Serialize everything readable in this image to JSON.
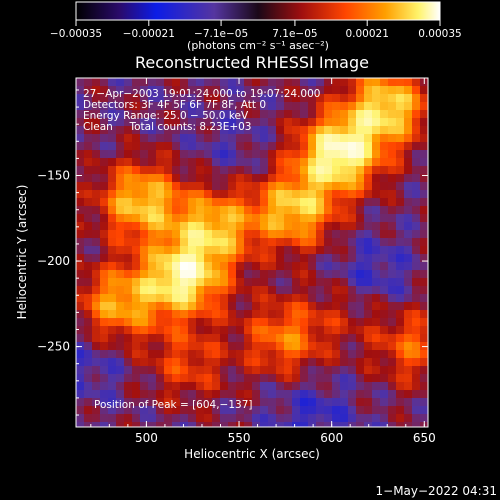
{
  "chart_data": {
    "type": "heatmap",
    "title": "Reconstructed RHESSI Image",
    "xlabel": "Heliocentric X (arcsec)",
    "ylabel": "Heliocentric Y (arcsec)",
    "xlim": [
      462,
      652
    ],
    "ylim": [
      -297,
      -93
    ],
    "x_ticks": [
      500,
      550,
      600,
      650
    ],
    "y_ticks": [
      -150,
      -200,
      -250
    ],
    "x_tick_labels": [
      "500",
      "550",
      "600",
      "650"
    ],
    "y_tick_labels": [
      "−150",
      "−200",
      "−250"
    ],
    "colorbar": {
      "range": [
        -0.00035,
        0.00035
      ],
      "tick_values": [
        -0.00035,
        -0.00021,
        -7.1e-05,
        7.1e-05,
        0.00021,
        0.00035
      ],
      "tick_labels": [
        "−0.00035",
        "−0.00021",
        "−7.1e−05",
        "7.1e−05",
        "0.00021",
        "0.00035"
      ],
      "unit_label": "(photons cm⁻² s⁻¹ asec⁻²)",
      "colors": [
        "#000000",
        "#2a0a6b",
        "#0c1ce6",
        "#5535a0",
        "#a00f0f",
        "#ff4500",
        "#ff9f00",
        "#fff36a",
        "#ffffff"
      ]
    },
    "annotations": [
      "27−Apr−2003 19:01:24.000 to 19:07:24.000",
      "Detectors: 3F 4F 5F 6F 7F 8F, Att 0",
      "Energy Range: 25.0 − 50.0 keV",
      "Clean     Total counts: 8.23E+03"
    ],
    "peak_label": "Position of Peak = [604,−137]",
    "peak": [
      604,
      -137
    ],
    "bright_regions": [
      {
        "x": 485,
        "y": -225,
        "value": 0.00022
      },
      {
        "x": 520,
        "y": -210,
        "value": 0.00032
      },
      {
        "x": 497,
        "y": -165,
        "value": 0.00026
      },
      {
        "x": 537,
        "y": -180,
        "value": 0.00024
      },
      {
        "x": 580,
        "y": -170,
        "value": 0.00026
      },
      {
        "x": 604,
        "y": -137,
        "value": 0.00035
      },
      {
        "x": 630,
        "y": -110,
        "value": 0.00028
      },
      {
        "x": 575,
        "y": -245,
        "value": 0.00018
      },
      {
        "x": 522,
        "y": -260,
        "value": 0.00012
      },
      {
        "x": 645,
        "y": -250,
        "value": 0.00015
      },
      {
        "x": 610,
        "y": -225,
        "value": 8e-05
      }
    ],
    "dark_regions": [
      {
        "x": 620,
        "y": -210,
        "value": -0.0001
      },
      {
        "x": 590,
        "y": -290,
        "value": -8e-05
      },
      {
        "x": 470,
        "y": -260,
        "value": -6e-05
      },
      {
        "x": 545,
        "y": -135,
        "value": -4e-05
      }
    ],
    "grid": false
  },
  "footer": {
    "timestamp": "1−May−2022 04:31"
  }
}
